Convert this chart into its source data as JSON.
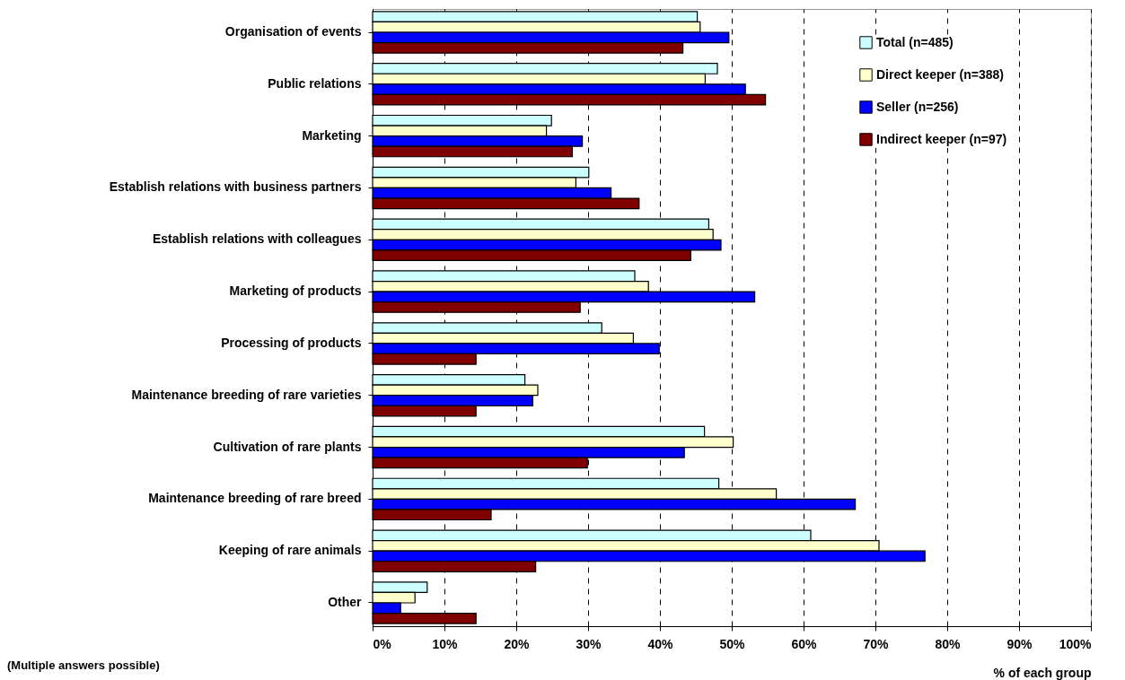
{
  "chart_data": {
    "type": "bar",
    "orientation": "horizontal",
    "categories": [
      "Organisation of events",
      "Public relations",
      "Marketing",
      "Establish relations with business partners",
      "Establish relations with colleagues",
      "Marketing of products",
      "Processing of products",
      "Maintenance breeding of rare varieties",
      "Cultivation of rare plants",
      "Maintenance breeding of rare breed",
      "Keeping of rare animals",
      "Other"
    ],
    "series": [
      {
        "name": "Total (n=485)",
        "color": "#ccffff",
        "values": [
          45.2,
          48.0,
          24.9,
          30.1,
          46.8,
          36.5,
          31.9,
          21.2,
          46.2,
          48.2,
          61.0,
          7.6
        ]
      },
      {
        "name": "Direct keeper (n=388)",
        "color": "#ffffcc",
        "values": [
          45.6,
          46.3,
          24.2,
          28.3,
          47.4,
          38.4,
          36.3,
          23.0,
          50.2,
          56.2,
          70.5,
          5.9
        ]
      },
      {
        "name": "Seller (n=256)",
        "color": "#0000ff",
        "values": [
          49.6,
          51.9,
          29.2,
          33.2,
          48.5,
          53.2,
          39.9,
          22.3,
          43.4,
          67.2,
          76.9,
          3.9
        ]
      },
      {
        "name": "Indirect keeper (n=97)",
        "color": "#800000",
        "values": [
          43.2,
          54.7,
          27.8,
          37.1,
          44.3,
          28.9,
          14.4,
          14.4,
          29.9,
          16.5,
          22.7,
          14.4
        ]
      }
    ],
    "xlim": [
      0,
      100
    ],
    "xticks": [
      {
        "value": 0,
        "label": "0%"
      },
      {
        "value": 10,
        "label": "10%"
      },
      {
        "value": 20,
        "label": "20%"
      },
      {
        "value": 30,
        "label": "30%"
      },
      {
        "value": 40,
        "label": "40%"
      },
      {
        "value": 50,
        "label": "50%"
      },
      {
        "value": 60,
        "label": "60%"
      },
      {
        "value": 70,
        "label": "70%"
      },
      {
        "value": 80,
        "label": "80%"
      },
      {
        "value": 90,
        "label": "90%"
      },
      {
        "value": 100,
        "label": "100%"
      }
    ],
    "xlabel": "% of each group",
    "grid": "x",
    "legend": "top right",
    "annotations": [
      "(Multiple answers possible)"
    ]
  }
}
